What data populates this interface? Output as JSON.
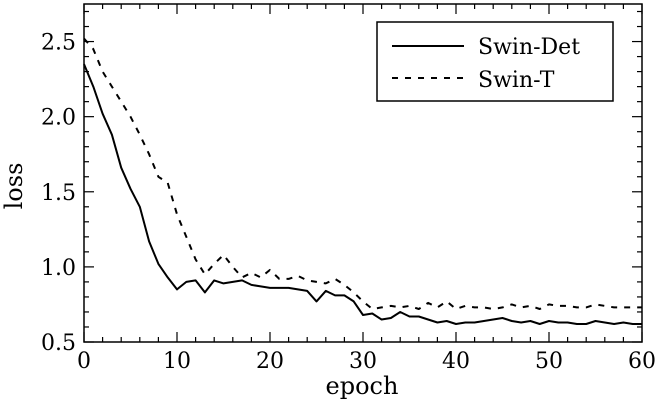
{
  "chart_data": {
    "type": "line",
    "xlabel": "epoch",
    "ylabel": "loss",
    "xlim": [
      0,
      60
    ],
    "ylim": [
      0.5,
      2.75
    ],
    "xticks": [
      0,
      10,
      20,
      30,
      40,
      50,
      60
    ],
    "yticks": [
      0.5,
      1.0,
      1.5,
      2.0,
      2.5
    ],
    "xtick_labels": [
      "0",
      "10",
      "20",
      "30",
      "40",
      "50",
      "60"
    ],
    "ytick_labels": [
      "0.5",
      "1.0",
      "1.5",
      "2.0",
      "2.5"
    ],
    "grid": false,
    "legend": "top-right",
    "x": [
      0,
      1,
      2,
      3,
      4,
      5,
      6,
      7,
      8,
      9,
      10,
      11,
      12,
      13,
      14,
      15,
      16,
      17,
      18,
      19,
      20,
      21,
      22,
      23,
      24,
      25,
      26,
      27,
      28,
      29,
      30,
      31,
      32,
      33,
      34,
      35,
      36,
      37,
      38,
      39,
      40,
      41,
      42,
      43,
      44,
      45,
      46,
      47,
      48,
      49,
      50,
      51,
      52,
      53,
      54,
      55,
      56,
      57,
      58,
      59,
      60
    ],
    "series": [
      {
        "name": "Swin-Det",
        "style": "solid",
        "values": [
          2.35,
          2.2,
          2.02,
          1.88,
          1.66,
          1.52,
          1.4,
          1.17,
          1.02,
          0.93,
          0.85,
          0.9,
          0.91,
          0.83,
          0.91,
          0.89,
          0.9,
          0.91,
          0.88,
          0.87,
          0.86,
          0.86,
          0.86,
          0.85,
          0.84,
          0.77,
          0.84,
          0.81,
          0.81,
          0.77,
          0.68,
          0.69,
          0.65,
          0.66,
          0.7,
          0.67,
          0.67,
          0.65,
          0.63,
          0.64,
          0.62,
          0.63,
          0.63,
          0.64,
          0.65,
          0.66,
          0.64,
          0.63,
          0.64,
          0.62,
          0.64,
          0.63,
          0.63,
          0.62,
          0.62,
          0.64,
          0.63,
          0.62,
          0.63,
          0.62,
          0.62
        ]
      },
      {
        "name": "Swin-T",
        "style": "dashed",
        "values": [
          2.52,
          2.45,
          2.3,
          2.2,
          2.1,
          2.0,
          1.88,
          1.75,
          1.6,
          1.56,
          1.35,
          1.2,
          1.05,
          0.95,
          1.02,
          1.08,
          1.0,
          0.93,
          0.96,
          0.93,
          0.98,
          0.92,
          0.92,
          0.94,
          0.91,
          0.9,
          0.89,
          0.92,
          0.88,
          0.83,
          0.77,
          0.72,
          0.73,
          0.74,
          0.73,
          0.74,
          0.72,
          0.76,
          0.73,
          0.77,
          0.72,
          0.74,
          0.73,
          0.73,
          0.72,
          0.73,
          0.75,
          0.73,
          0.74,
          0.72,
          0.75,
          0.74,
          0.74,
          0.73,
          0.73,
          0.75,
          0.74,
          0.73,
          0.73,
          0.73,
          0.73
        ]
      }
    ]
  }
}
